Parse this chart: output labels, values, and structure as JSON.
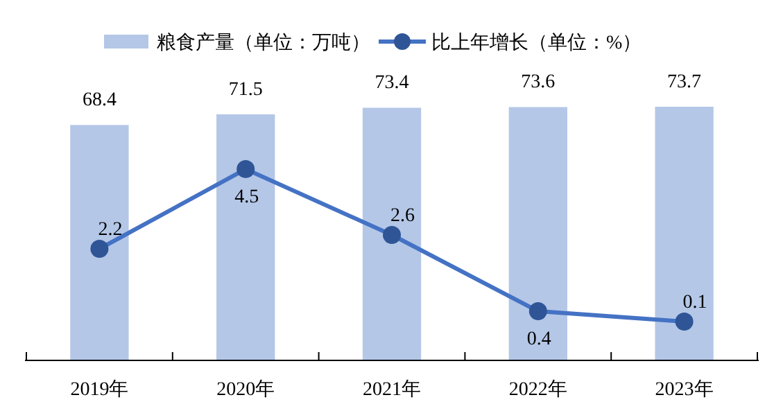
{
  "chart_data": {
    "type": "bar",
    "categories": [
      "2019年",
      "2020年",
      "2021年",
      "2022年",
      "2023年"
    ],
    "series": [
      {
        "name": "粮食产量（单位：万吨）",
        "color": "#b4c7e7",
        "values": [
          68.4,
          71.5,
          73.4,
          73.6,
          73.7
        ]
      },
      {
        "name": "比上年增长（单位：%）",
        "type": "line",
        "axis": "y2",
        "color": "#4472c4",
        "values": [
          2.2,
          4.5,
          2.6,
          0.4,
          0.1
        ]
      }
    ],
    "tick_labels": "x",
    "data_labels": true,
    "legend": "top",
    "marker": "circle",
    "line_style": "solid",
    "grid": false
  }
}
